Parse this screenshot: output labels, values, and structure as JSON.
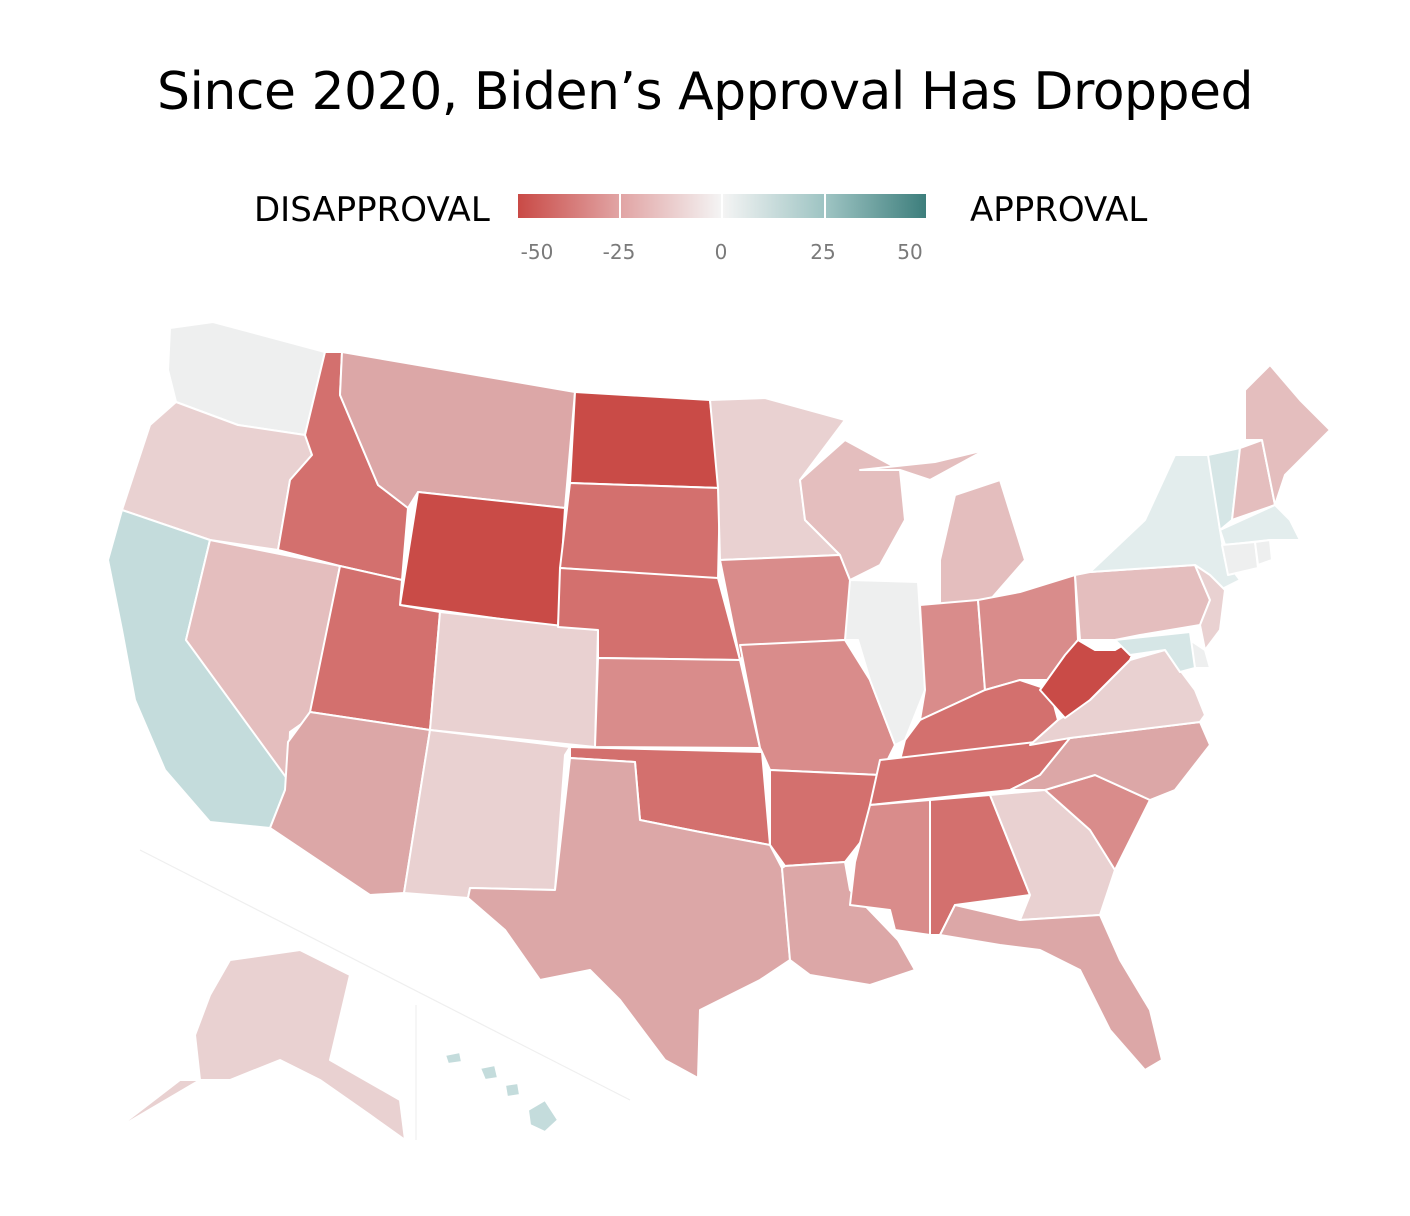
{
  "title": "Since 2020, Biden’s Approval Has Dropped",
  "legend": {
    "left_label": "DISAPPROVAL",
    "right_label": "APPROVAL",
    "ticks": [
      "-50",
      "-25",
      "0",
      "25",
      "50"
    ],
    "gradient": [
      "#c94a46",
      "#e1a4a4",
      "#f4f4f4",
      "#9ec4c3",
      "#3d7e7c"
    ]
  },
  "colors": {
    "strong": "#c94b47",
    "dark": "#d3706e",
    "medium": "#d98c8b",
    "lightmed": "#dca7a7",
    "light": "#e4bebe",
    "pale": "#e9d1d1",
    "neutral": "#eeefef",
    "teal_pale": "#e3eded",
    "teal": "#c4dcdc",
    "teal_light": "#d6e6e6"
  },
  "states": {
    "WA": "neutral",
    "OR": "pale",
    "CA": "teal",
    "NV": "light",
    "ID": "dark",
    "MT": "lightmed",
    "WY": "strong",
    "UT": "dark",
    "AZ": "lightmed",
    "CO": "pale",
    "NM": "pale",
    "ND": "strong",
    "SD": "dark",
    "NE": "dark",
    "KS": "medium",
    "OK": "dark",
    "TX": "lightmed",
    "MN": "pale",
    "IA": "medium",
    "MO": "medium",
    "AR": "dark",
    "LA": "lightmed",
    "WI": "light",
    "IL": "neutral",
    "MI": "light",
    "IN": "medium",
    "OH": "medium",
    "KY": "dark",
    "TN": "dark",
    "MS": "medium",
    "AL": "dark",
    "GA": "pale",
    "FL": "lightmed",
    "SC": "medium",
    "NC": "lightmed",
    "VA": "pale",
    "WV": "strong",
    "PA": "light",
    "NY": "teal_pale",
    "VT": "teal_light",
    "NH": "light",
    "ME": "light",
    "MA": "teal_pale",
    "CT": "neutral",
    "RI": "neutral",
    "NJ": "pale",
    "DE": "neutral",
    "MD": "teal_light",
    "AK": "pale",
    "HI": "teal"
  }
}
